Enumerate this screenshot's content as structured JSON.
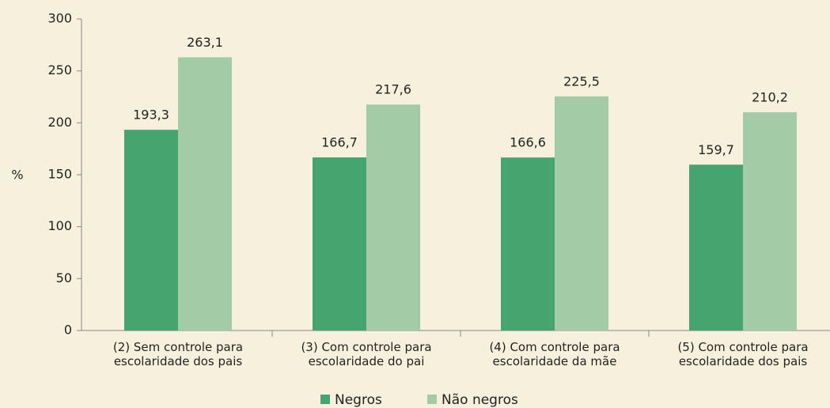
{
  "chart_data": {
    "type": "bar",
    "categories": [
      "(2) Sem controle para escolaridade dos pais",
      "(3) Com controle para escolaridade do pai",
      "(4) Com controle para escolaridade da mãe",
      "(5) Com controle para escolaridade dos pais"
    ],
    "series": [
      {
        "name": "Negros",
        "color": "#46a46e",
        "values": [
          193.3,
          166.7,
          166.6,
          159.7
        ],
        "value_labels": [
          "193,3",
          "166,7",
          "166,6",
          "159,7"
        ]
      },
      {
        "name": "Não negros",
        "color": "#a3cba6",
        "values": [
          263.1,
          217.6,
          225.5,
          210.2
        ],
        "value_labels": [
          "263,1",
          "217,6",
          "225,5",
          "210,2"
        ]
      }
    ],
    "y_label": "%",
    "ylim": [
      0,
      300
    ],
    "yticks": [
      0,
      50,
      100,
      150,
      200,
      250,
      300
    ],
    "legend": "bottom"
  }
}
